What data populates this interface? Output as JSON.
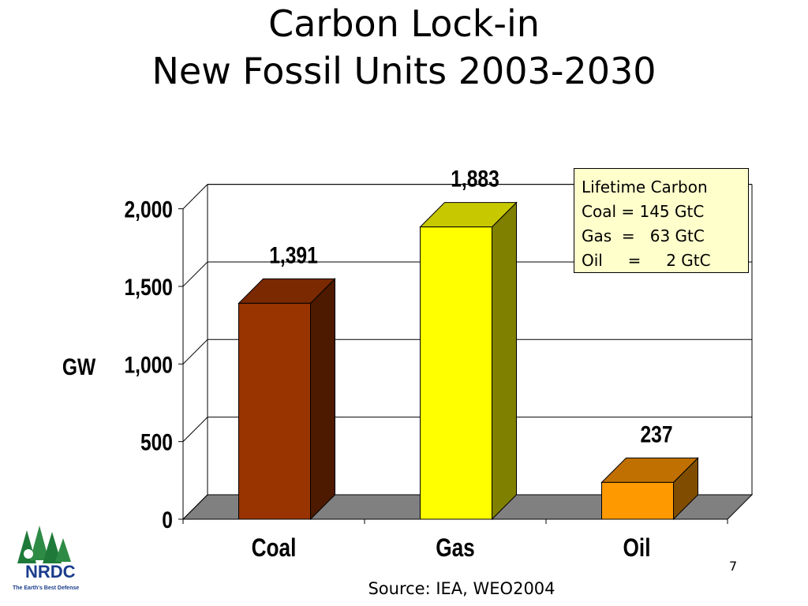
{
  "title_line1": "Carbon Lock-in",
  "title_line2": "New Fossil Units 2003-2030",
  "legend_box": {
    "lines": [
      "Lifetime Carbon",
      "Coal = 145 GtC",
      "Gas  =   63 GtC",
      "Oil     =     2 GtC"
    ]
  },
  "source": "Source: IEA, WEO2004",
  "page_number": "7",
  "logo": {
    "text": "NRDC",
    "tagline": "The Earth's Best Defense"
  },
  "chart_data": {
    "type": "bar",
    "categories": [
      "Coal",
      "Gas",
      "Oil"
    ],
    "values": [
      1391,
      1883,
      237
    ],
    "value_labels": [
      "1,391",
      "1,883",
      "237"
    ],
    "ylabel": "GW",
    "yticks": [
      0,
      500,
      1000,
      1500,
      2000
    ],
    "ytick_labels": [
      "0",
      "500",
      "1,000",
      "1,500",
      "2,000"
    ],
    "ylim": [
      0,
      2000
    ],
    "grid": true,
    "colors": {
      "front": [
        "#993300",
        "#ffff00",
        "#ff9900"
      ],
      "top": [
        "#7a2900",
        "#c8c800",
        "#c07000"
      ],
      "side": [
        "#4d1a00",
        "#808000",
        "#804d00"
      ],
      "floor": "#808080"
    }
  }
}
